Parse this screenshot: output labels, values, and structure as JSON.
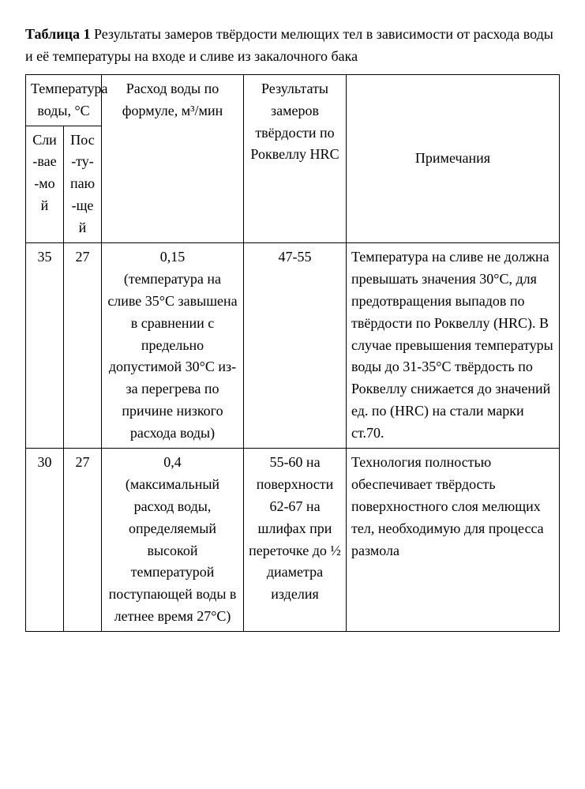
{
  "caption": {
    "label": "Таблица 1",
    "text": " Результаты замеров твёрдости мелющих тел в зависимости от расхода воды и её температуры на входе и сливе из закалочного бака"
  },
  "table": {
    "head": {
      "temp_header": "Температура воды, °С",
      "flow_header": "Расход воды по формуле, м³/мин",
      "hrc_header": "Результаты замеров твёрдости по Роквеллу HRC",
      "notes_header": "Примечания",
      "outflow_sub": "Сли-вае-мой",
      "inflow_sub": "Пос-ту-паю-щей"
    },
    "rows": [
      {
        "outflow": "35",
        "inflow": "27",
        "flow": "0,15\n(температура на сливе 35°С завышена в сравнении с предельно допустимой 30°С из-за перегрева по причине низкого расхода воды)",
        "hrc": "47-55",
        "notes": "Температура на сливе не должна превышать значения 30°С, для предотвращения выпадов по твёрдости по Роквеллу (HRC). В случае превышения температуры воды до 31-35°С твёрдость по Роквеллу снижается до значений ед. по (HRC) на стали марки ст.70."
      },
      {
        "outflow": "30",
        "inflow": "27",
        "flow": "0,4\n(максимальный расход воды, определяемый высокой температурой поступающей воды в летнее время 27°С)",
        "hrc": "55-60 на поверхности 62-67 на шлифах при переточке до ½ диаметра изделия",
        "notes": "Технология полностью обеспечивает твёрдость поверхностного слоя мелющих тел, необходимую для процесса размола"
      }
    ]
  }
}
